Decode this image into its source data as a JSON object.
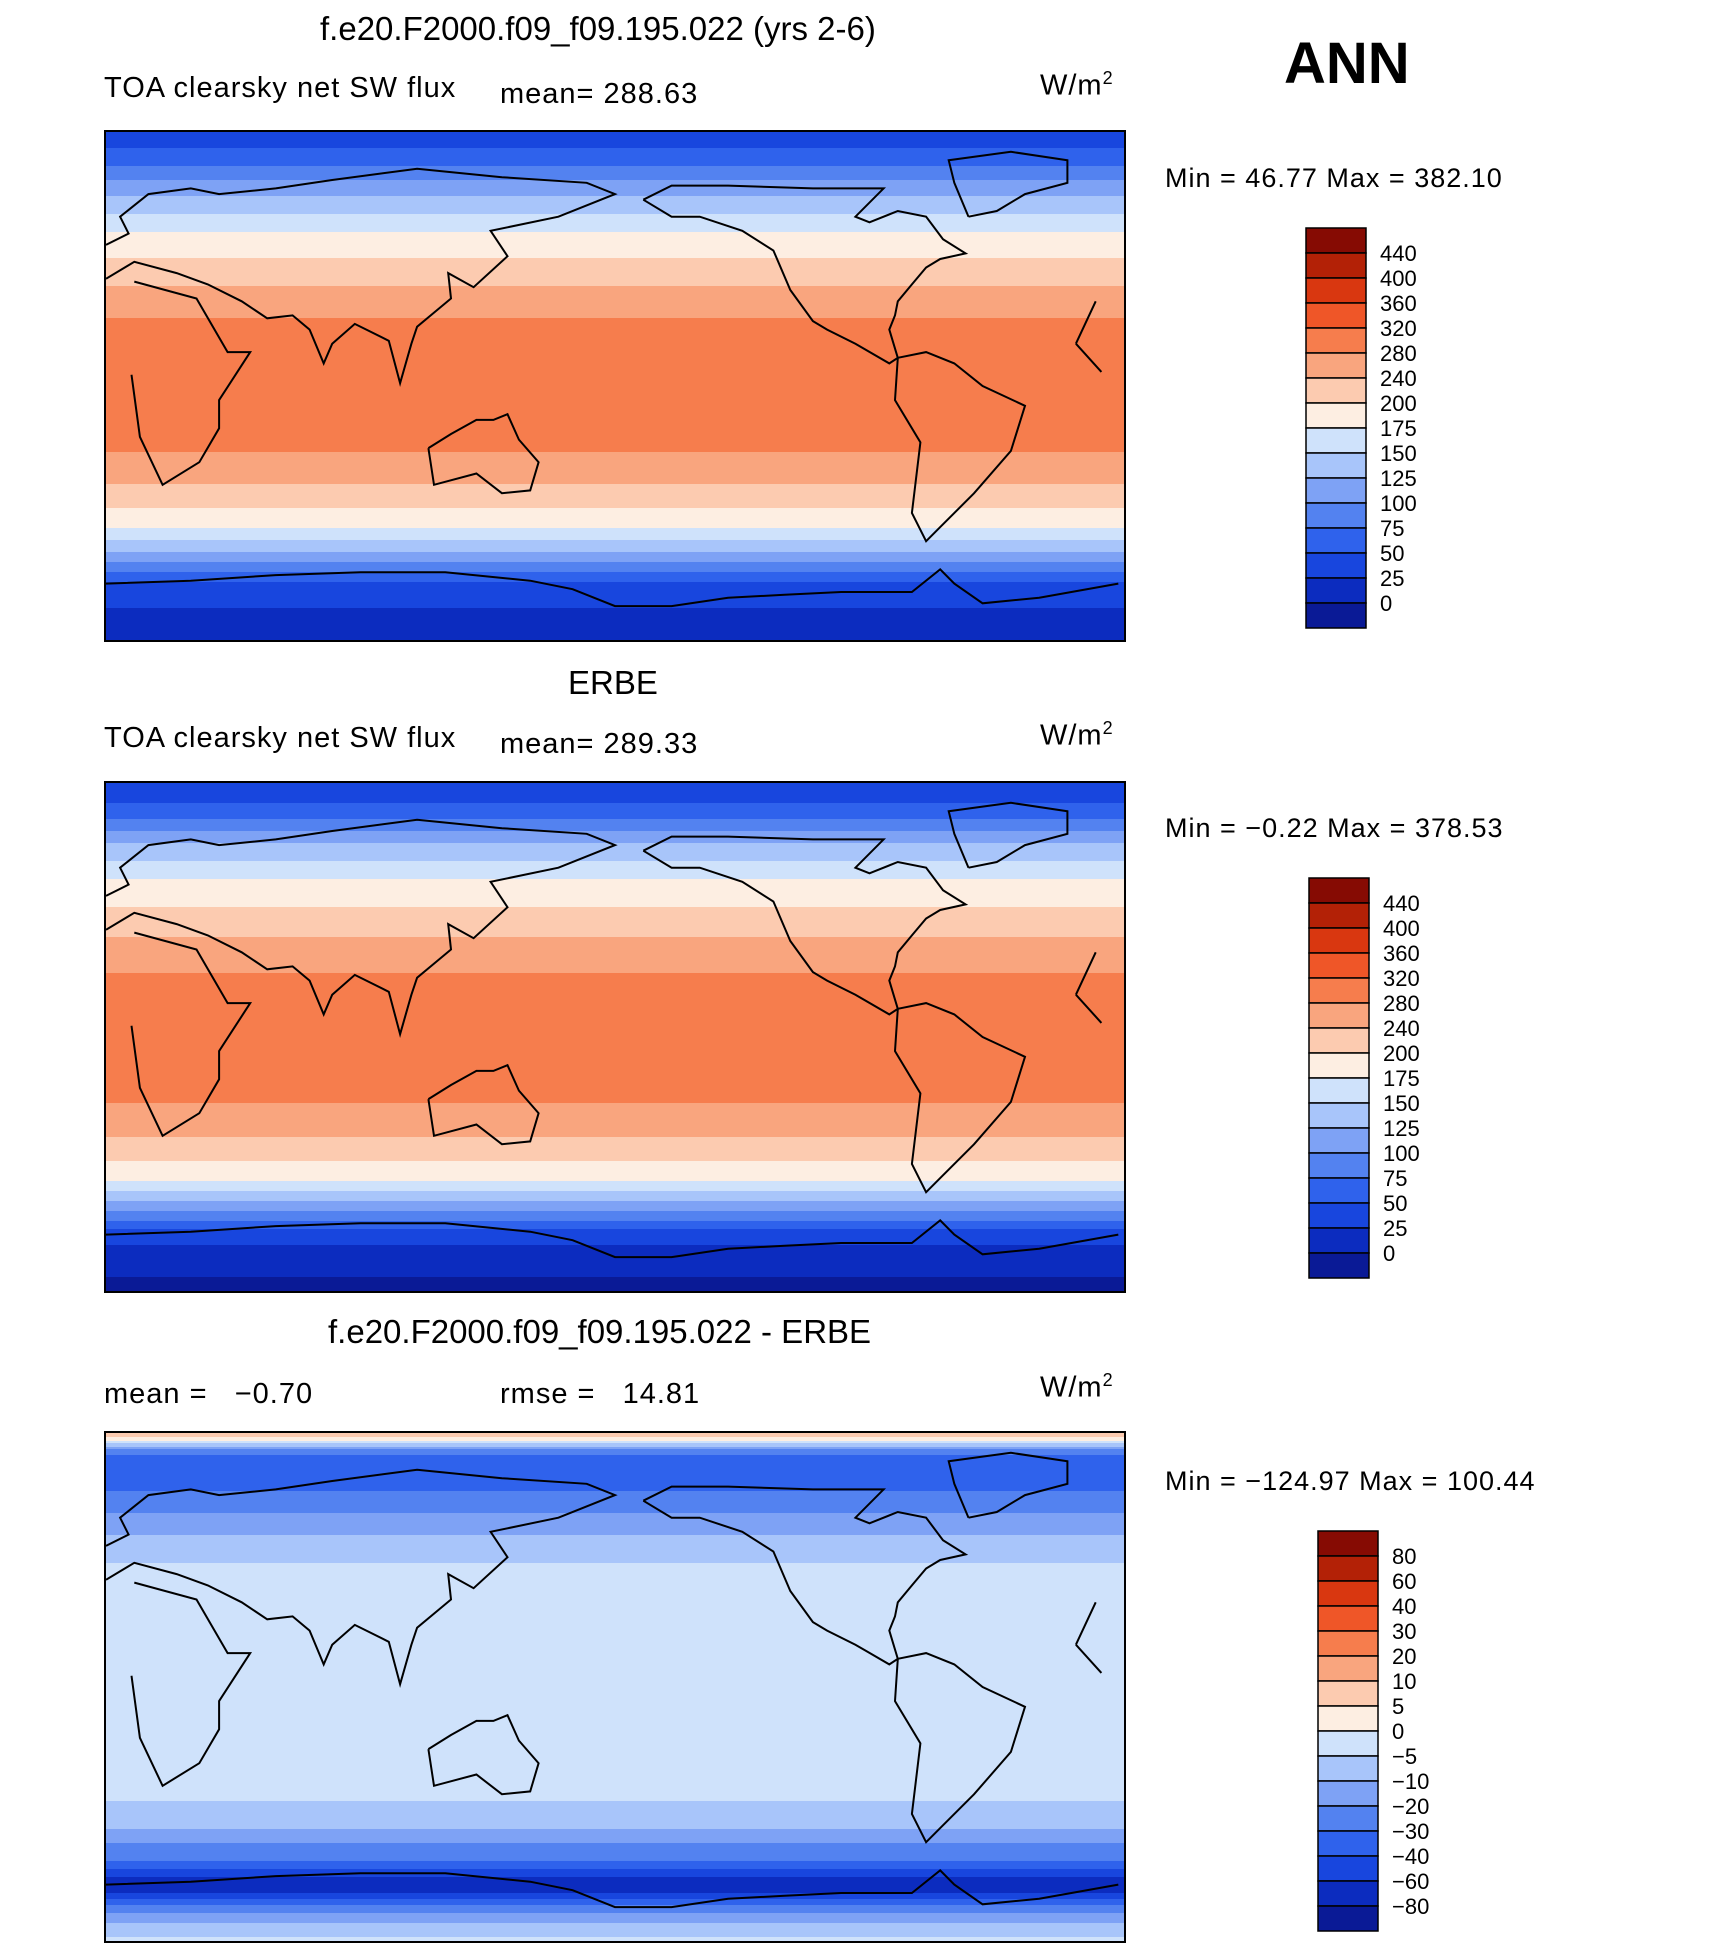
{
  "season": "ANN",
  "units_base": "W/m",
  "units_exp": "2",
  "colors": {
    "full": [
      "#08086e",
      "#0a1a96",
      "#0c2cbf",
      "#1846de",
      "#2f62ec",
      "#5382f0",
      "#7ea2f5",
      "#a8c5fa",
      "#cfe2fb",
      "#fdeee2",
      "#fccbb0",
      "#f9a57e",
      "#f67d4d",
      "#ef5628",
      "#d93710",
      "#b32106",
      "#860b03"
    ],
    "diff": [
      "#08086e",
      "#0a1a96",
      "#0c2cbf",
      "#1846de",
      "#2f62ec",
      "#5382f0",
      "#7ea2f5",
      "#a8c5fa",
      "#cfe2fb",
      "#fdeee2",
      "#fccbb0",
      "#f9a57e",
      "#f67d4d",
      "#ef5628",
      "#d93710",
      "#b32106",
      "#860b03"
    ]
  },
  "chart_data": [
    {
      "type": "heatmap",
      "title": "f.e20.F2000.f09_f09.195.022 (yrs 2-6)",
      "subtitle": "TOA clearsky net SW flux",
      "mean_label": "mean=",
      "mean": "288.63",
      "min_label": "Min =",
      "min": "46.77",
      "max_label": "Max =",
      "max": "382.10",
      "colorbar_levels": [
        "440",
        "400",
        "360",
        "320",
        "280",
        "240",
        "200",
        "175",
        "150",
        "125",
        "100",
        "75",
        "50",
        "25",
        "0"
      ],
      "zonal_profile": {
        "lat": [
          90,
          80,
          70,
          60,
          50,
          40,
          30,
          20,
          10,
          0,
          -10,
          -20,
          -30,
          -40,
          -50,
          -60,
          -70,
          -80,
          -90
        ],
        "value": [
          60,
          90,
          140,
          180,
          220,
          265,
          300,
          335,
          355,
          355,
          345,
          330,
          300,
          255,
          200,
          140,
          70,
          45,
          40
        ]
      }
    },
    {
      "type": "heatmap",
      "title": "ERBE",
      "subtitle": "TOA clearsky net SW flux",
      "mean_label": "mean=",
      "mean": "289.33",
      "min_label": "Min =",
      "min": "−0.22",
      "max_label": "Max =",
      "max": "378.53",
      "colorbar_levels": [
        "440",
        "400",
        "360",
        "320",
        "280",
        "240",
        "200",
        "175",
        "150",
        "125",
        "100",
        "75",
        "50",
        "25",
        "0"
      ],
      "zonal_profile": {
        "lat": [
          90,
          80,
          70,
          60,
          50,
          40,
          30,
          20,
          10,
          0,
          -10,
          -20,
          -30,
          -40,
          -50,
          -60,
          -70,
          -80,
          -90
        ],
        "value": [
          55,
          85,
          145,
          185,
          225,
          265,
          300,
          330,
          350,
          355,
          345,
          328,
          300,
          258,
          205,
          135,
          60,
          30,
          20
        ]
      }
    },
    {
      "type": "heatmap",
      "title": "f.e20.F2000.f09_f09.195.022 - ERBE",
      "mean_label": "mean =",
      "mean": "−0.70",
      "rmse_label": "rmse =",
      "rmse": "14.81",
      "min_label": "Min =",
      "min": "−124.97",
      "max_label": "Max =",
      "max": "100.44",
      "colorbar_levels": [
        "80",
        "60",
        "40",
        "30",
        "20",
        "10",
        "5",
        "0",
        "−5",
        "−10",
        "−20",
        "−30",
        "−40",
        "−60",
        "−80"
      ],
      "zonal_profile": {
        "lat": [
          90,
          80,
          70,
          60,
          50,
          40,
          30,
          20,
          10,
          0,
          -10,
          -20,
          -30,
          -40,
          -50,
          -60,
          -70,
          -80,
          -90
        ],
        "value": [
          15,
          -30,
          -20,
          -8,
          -3,
          2,
          3,
          4,
          3,
          2,
          3,
          4,
          2,
          0,
          -5,
          -15,
          -50,
          -8,
          2
        ]
      }
    }
  ]
}
